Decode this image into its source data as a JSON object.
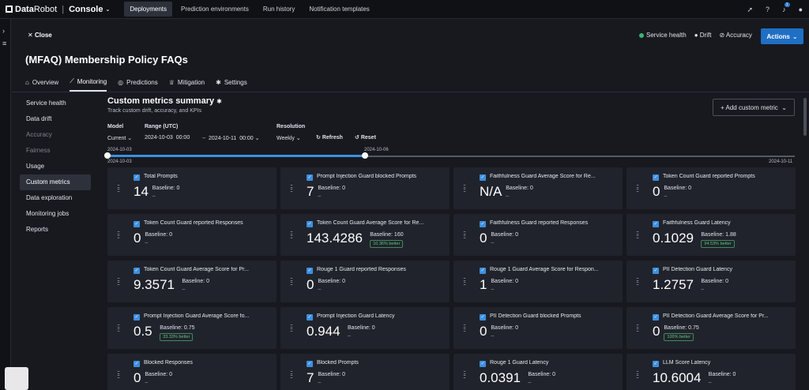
{
  "brand": {
    "name_a": "Data",
    "name_b": "Robot",
    "separator": "|",
    "product": "Console"
  },
  "topnav": [
    "Deployments",
    "Prediction environments",
    "Run history",
    "Notification templates"
  ],
  "topnav_active": 0,
  "top_icons": {
    "notification_count": "1"
  },
  "close_label": "Close",
  "status": {
    "service_health": "Service health",
    "drift": "Drift",
    "accuracy": "Accuracy"
  },
  "actions_label": "Actions",
  "deployment_title": "(MFAQ) Membership Policy FAQs",
  "tabs": [
    "Overview",
    "Monitoring",
    "Predictions",
    "Mitigation",
    "Settings"
  ],
  "tabs_active": 1,
  "subnav": [
    {
      "label": "Service health",
      "state": "normal"
    },
    {
      "label": "Data drift",
      "state": "normal"
    },
    {
      "label": "Accuracy",
      "state": "dim"
    },
    {
      "label": "Fairness",
      "state": "dim"
    },
    {
      "label": "Usage",
      "state": "normal"
    },
    {
      "label": "Custom metrics",
      "state": "active"
    },
    {
      "label": "Data exploration",
      "state": "normal"
    },
    {
      "label": "Monitoring jobs",
      "state": "normal"
    },
    {
      "label": "Reports",
      "state": "normal"
    }
  ],
  "panel": {
    "title": "Custom metrics summary",
    "subtitle": "Track custom drift, accuracy, and KPIs",
    "add_button": "+ Add custom metric"
  },
  "controls": {
    "model_label": "Model",
    "model_value": "Current",
    "range_label": "Range (UTC)",
    "range_start": "2024-10-03",
    "range_start_time": "00:00",
    "range_end": "2024-10-11",
    "range_end_time": "00:00",
    "resolution_label": "Resolution",
    "resolution_value": "Weekly",
    "refresh": "Refresh",
    "reset": "Reset"
  },
  "slider": {
    "start_label": "2024-10-03",
    "handle_label": "2024-10-06",
    "min_label": "2024-10-03",
    "max_label": "2024-10-11",
    "range_fraction": 0.375
  },
  "colors": {
    "accent": "#3d8fe0",
    "good": "#63c384",
    "health": "#3cb371"
  },
  "metrics": [
    {
      "name": "Total Prompts",
      "value": "14",
      "baseline": "Baseline: 0",
      "delta": "–"
    },
    {
      "name": "Prompt Injection Guard blocked Prompts",
      "value": "7",
      "baseline": "Baseline: 0",
      "delta": "–"
    },
    {
      "name": "Faithfulness Guard Average Score for Re...",
      "value": "N/A",
      "baseline": "Baseline: 0",
      "delta": "–"
    },
    {
      "name": "Token Count Guard reported Prompts",
      "value": "0",
      "baseline": "Baseline: 0",
      "delta": "–"
    },
    {
      "name": "Token Count Guard reported Responses",
      "value": "0",
      "baseline": "Baseline: 0",
      "delta": "–"
    },
    {
      "name": "Token Count Guard Average Score for Re...",
      "value": "143.4286",
      "baseline": "Baseline: 160",
      "better": "10.36% better"
    },
    {
      "name": "Faithfulness Guard reported Responses",
      "value": "0",
      "baseline": "Baseline: 0",
      "delta": "–"
    },
    {
      "name": "Faithfulness Guard Latency",
      "value": "0.1029",
      "baseline": "Baseline: 1.88",
      "better": "94.53% better"
    },
    {
      "name": "Token Count Guard Average Score for Pr...",
      "value": "9.3571",
      "baseline": "Baseline: 0",
      "delta": "–"
    },
    {
      "name": "Rouge 1 Guard reported Responses",
      "value": "0",
      "baseline": "Baseline: 0",
      "delta": "–"
    },
    {
      "name": "Rouge 1 Guard Average Score for Respon...",
      "value": "1",
      "baseline": "Baseline: 0",
      "delta": "–"
    },
    {
      "name": "PII Detection Guard Latency",
      "value": "1.2757",
      "baseline": "Baseline: 0",
      "delta": "–"
    },
    {
      "name": "Prompt Injection Guard Average Score fo...",
      "value": "0.5",
      "baseline": "Baseline: 0.75",
      "better": "33.33% better"
    },
    {
      "name": "Prompt Injection Guard Latency",
      "value": "0.944",
      "baseline": "Baseline: 0",
      "delta": "–"
    },
    {
      "name": "PII Detection Guard blocked Prompts",
      "value": "0",
      "baseline": "Baseline: 0",
      "delta": "–"
    },
    {
      "name": "PII Detection Guard Average Score for Pr...",
      "value": "0",
      "baseline": "Baseline: 0.75",
      "better": "100% better"
    },
    {
      "name": "Blocked Responses",
      "value": "0",
      "baseline": "Baseline: 0",
      "delta": "–"
    },
    {
      "name": "Blocked Prompts",
      "value": "7",
      "baseline": "Baseline: 0",
      "delta": "–"
    },
    {
      "name": "Rouge 1 Guard Latency",
      "value": "0.0391",
      "baseline": "Baseline: 0",
      "delta": "–"
    },
    {
      "name": "LLM Score Latency",
      "value": "10.6004",
      "baseline": "Baseline: 0",
      "delta": "–"
    }
  ]
}
